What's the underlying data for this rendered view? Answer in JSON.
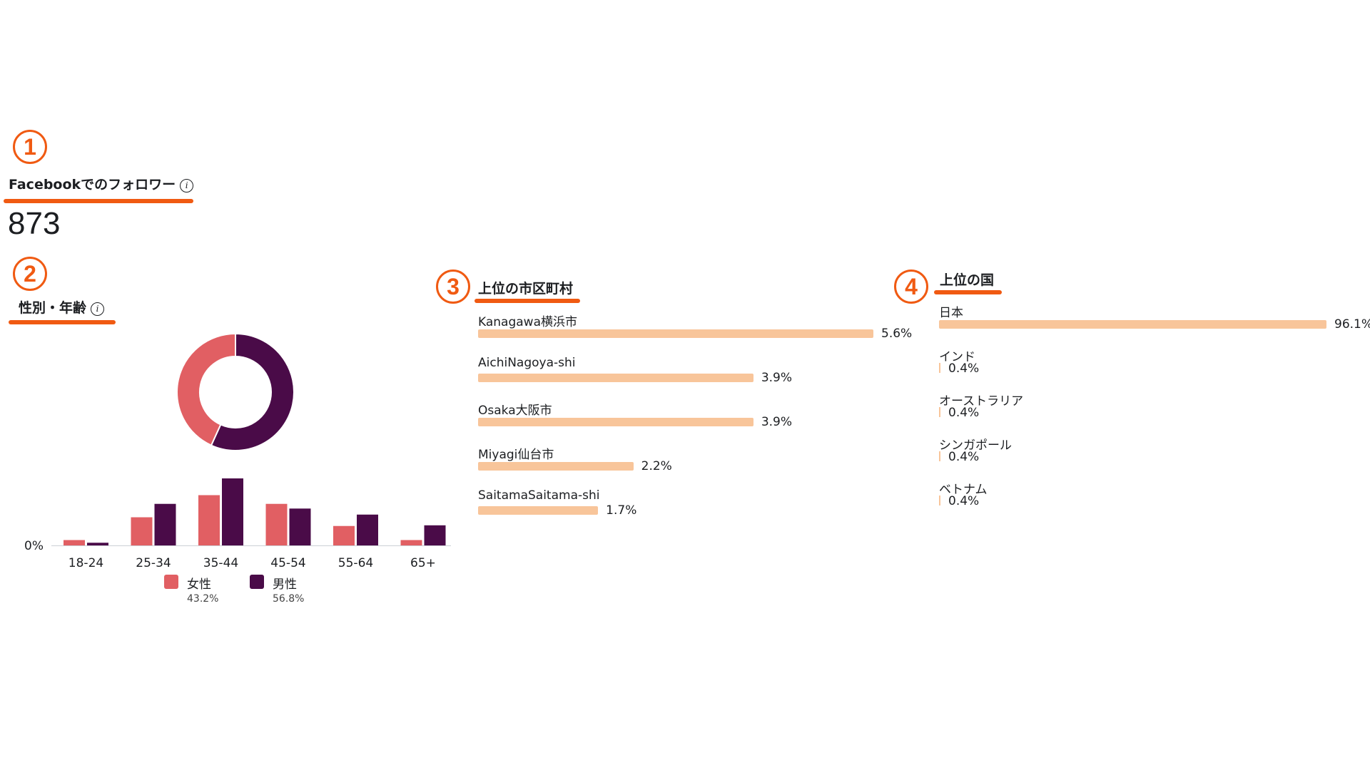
{
  "markers": [
    "1",
    "2",
    "3",
    "4"
  ],
  "followers": {
    "title": "Facebookでのフォロワー",
    "info_icon": "i",
    "count": "873"
  },
  "gender_age": {
    "title": "性別・年齢",
    "info_icon": "i"
  },
  "colors": {
    "female": "#e15f63",
    "male": "#4a0b48",
    "bar": "#f8c59a",
    "accent": "#f05a12"
  },
  "chart_data": [
    {
      "type": "pie",
      "title": "性別・年齢",
      "labels": [
        "女性",
        "男性"
      ],
      "values": [
        43.2,
        56.8
      ],
      "donut": true
    },
    {
      "type": "bar",
      "categories": [
        "18-24",
        "25-34",
        "35-44",
        "45-54",
        "55-64",
        "65+"
      ],
      "series": [
        {
          "name": "女性",
          "share": "43.2%",
          "values": [
            0.8,
            4.2,
            7.5,
            6.2,
            2.9,
            0.8
          ]
        },
        {
          "name": "男性",
          "share": "56.8%",
          "values": [
            0.4,
            6.2,
            10.0,
            5.5,
            4.6,
            3.0
          ]
        }
      ],
      "ytick": "0%",
      "ylim": [
        0,
        10
      ]
    },
    {
      "type": "bar",
      "orientation": "horizontal",
      "title": "上位の市区町村",
      "categories": [
        "Kanagawa横浜市",
        "AichiNagoya-shi",
        "Osaka大阪市",
        "Miyagi仙台市",
        "SaitamaSaitama-shi"
      ],
      "values": [
        5.6,
        3.9,
        3.9,
        2.2,
        1.7
      ],
      "value_labels": [
        "5.6%",
        "3.9%",
        "3.9%",
        "2.2%",
        "1.7%"
      ],
      "xlim": [
        0,
        5.6
      ]
    },
    {
      "type": "bar",
      "orientation": "horizontal",
      "title": "上位の国",
      "categories": [
        "日本",
        "インド",
        "オーストラリア",
        "シンガポール",
        "ベトナム"
      ],
      "values": [
        96.1,
        0.4,
        0.4,
        0.4,
        0.4
      ],
      "value_labels": [
        "96.1%",
        "0.4%",
        "0.4%",
        "0.4%",
        "0.4%"
      ],
      "xlim": [
        0,
        96.1
      ]
    }
  ]
}
